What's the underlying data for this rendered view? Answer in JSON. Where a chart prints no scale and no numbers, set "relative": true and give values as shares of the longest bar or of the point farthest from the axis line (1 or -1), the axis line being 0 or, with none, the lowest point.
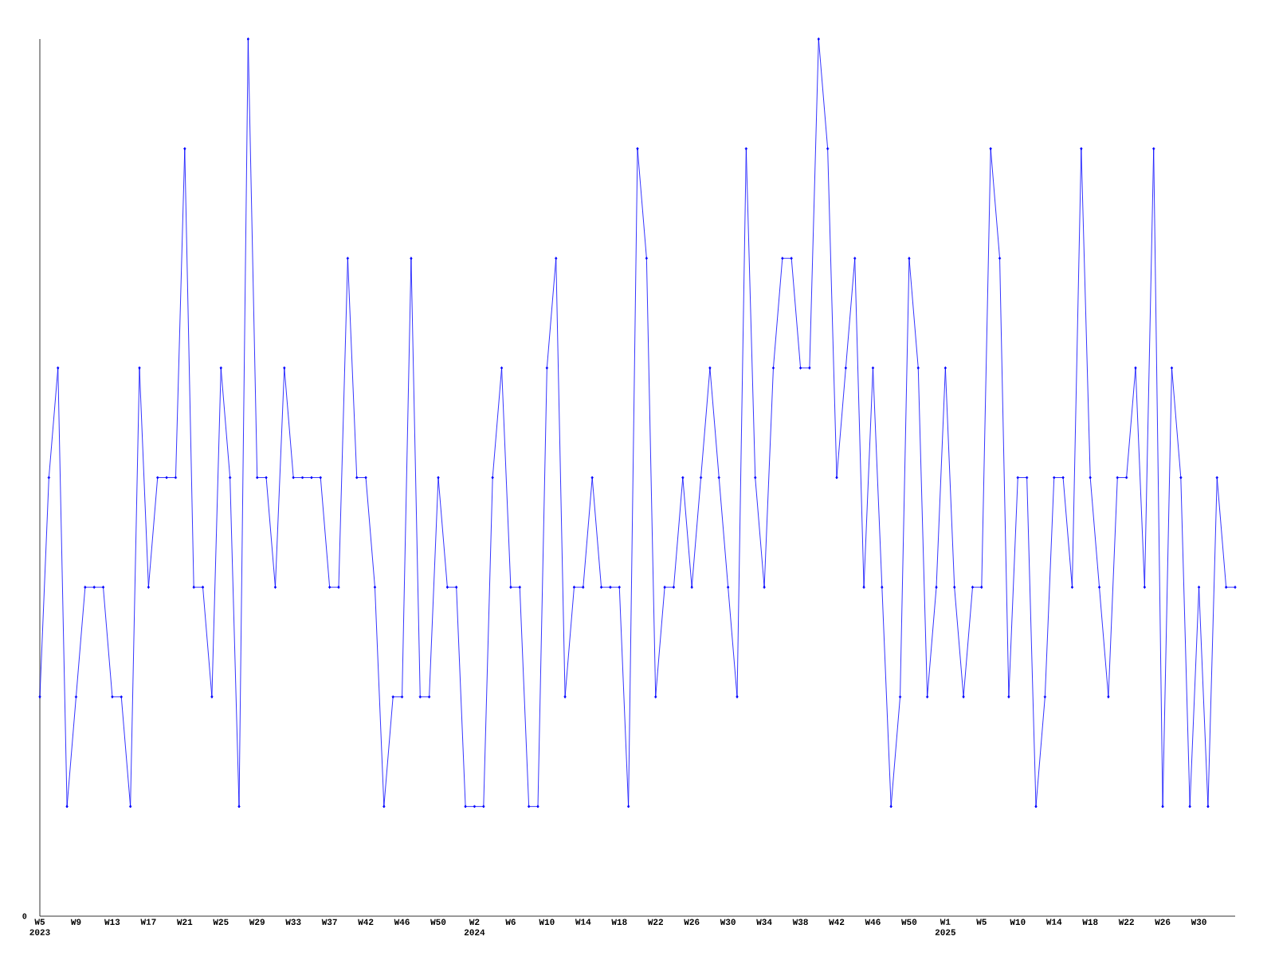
{
  "chart_data": {
    "type": "line",
    "relative": true,
    "marker": "diamond",
    "line_style": "solid",
    "categories": [
      "W5 2023",
      null,
      null,
      null,
      "W9",
      null,
      null,
      null,
      "W13",
      null,
      null,
      null,
      "W17",
      null,
      null,
      null,
      "W21",
      null,
      null,
      null,
      "W25",
      null,
      null,
      null,
      "W29",
      null,
      null,
      null,
      "W33",
      null,
      null,
      null,
      "W37",
      null,
      null,
      null,
      "W42",
      null,
      null,
      null,
      "W46",
      null,
      null,
      null,
      "W50",
      null,
      null,
      null,
      "W2 2024",
      null,
      null,
      null,
      "W6",
      null,
      null,
      null,
      "W10",
      null,
      null,
      null,
      "W14",
      null,
      null,
      null,
      "W18",
      null,
      null,
      null,
      "W22",
      null,
      null,
      null,
      "W26",
      null,
      null,
      null,
      "W30",
      null,
      null,
      null,
      "W34",
      null,
      null,
      null,
      "W38",
      null,
      null,
      null,
      "W42",
      null,
      null,
      null,
      "W46",
      null,
      null,
      null,
      "W50",
      null,
      null,
      null,
      "W1 2025",
      null,
      null,
      null,
      "W5",
      null,
      null,
      null,
      "W10",
      null,
      null,
      null,
      "W14",
      null,
      null,
      null,
      "W18",
      null,
      null,
      null,
      "W22",
      null,
      null,
      null,
      "W26",
      null,
      null,
      null,
      "W30",
      null,
      null,
      null,
      null
    ],
    "series": [
      {
        "color": "#0000ff",
        "values": [
          0.25,
          0.5,
          0.625,
          0.125,
          0.25,
          0.375,
          0.375,
          0.375,
          0.25,
          0.25,
          0.125,
          0.625,
          0.375,
          0.5,
          0.5,
          0.5,
          0.875,
          0.375,
          0.375,
          0.25,
          0.625,
          0.5,
          0.125,
          1,
          0.5,
          0.5,
          0.375,
          0.625,
          0.5,
          0.5,
          0.5,
          0.5,
          0.375,
          0.375,
          0.75,
          0.5,
          0.5,
          0.375,
          0.125,
          0.25,
          0.25,
          0.75,
          0.25,
          0.25,
          0.5,
          0.375,
          0.375,
          0.125,
          0.125,
          0.125,
          0.5,
          0.625,
          0.375,
          0.375,
          0.125,
          0.125,
          0.625,
          0.75,
          0.25,
          0.375,
          0.375,
          0.5,
          0.375,
          0.375,
          0.375,
          0.125,
          0.875,
          0.75,
          0.25,
          0.375,
          0.375,
          0.5,
          0.375,
          0.5,
          0.625,
          0.5,
          0.375,
          0.25,
          0.875,
          0.5,
          0.375,
          0.625,
          0.75,
          0.75,
          0.625,
          0.625,
          1,
          0.875,
          0.5,
          0.625,
          0.75,
          0.375,
          0.625,
          0.375,
          0.125,
          0.25,
          0.75,
          0.625,
          0.25,
          0.375,
          0.625,
          0.375,
          0.25,
          0.375,
          0.375,
          0.875,
          0.75,
          0.25,
          0.5,
          0.5,
          0.125,
          0.25,
          0.5,
          0.5,
          0.375,
          0.875,
          0.5,
          0.375,
          0.25,
          0.5,
          0.5,
          0.625,
          0.375,
          0.875,
          0.125,
          0.625,
          0.5,
          0.125,
          0.375,
          0.125,
          0.5,
          0.375,
          0.375
        ]
      }
    ],
    "annotations": [
      "0"
    ]
  }
}
